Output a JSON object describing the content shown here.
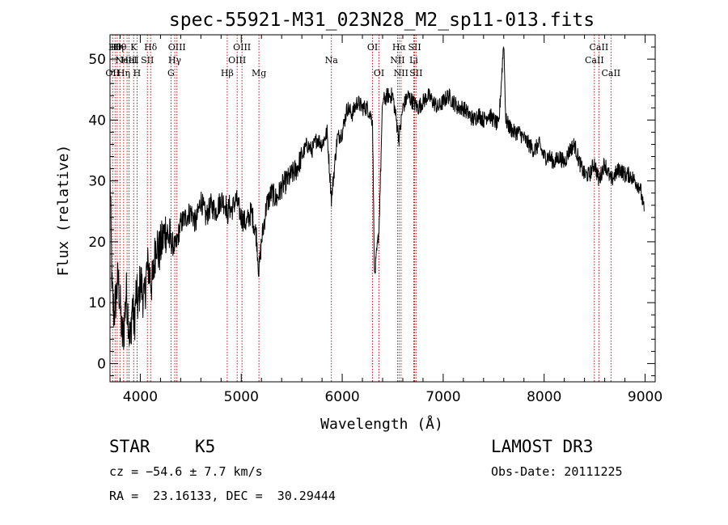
{
  "chart_data": {
    "type": "line",
    "title": "spec-55921-M31_023N28_M2_sp11-013.fits",
    "xlabel": "Wavelength (Å)",
    "ylabel": "Flux (relative)",
    "xlim": [
      3700,
      9100
    ],
    "ylim": [
      -3,
      54
    ],
    "xticks": [
      4000,
      5000,
      6000,
      7000,
      8000,
      9000
    ],
    "yticks": [
      0,
      10,
      20,
      30,
      40,
      50
    ],
    "x_minor_step": 200,
    "y_minor_step": 2,
    "grid": false,
    "series": [
      {
        "name": "flux",
        "color": "#000000",
        "x": [
          3700,
          3720,
          3740,
          3760,
          3780,
          3800,
          3820,
          3840,
          3860,
          3880,
          3900,
          3920,
          3940,
          3960,
          3980,
          4000,
          4020,
          4040,
          4060,
          4080,
          4100,
          4120,
          4140,
          4160,
          4180,
          4200,
          4250,
          4300,
          4350,
          4400,
          4450,
          4500,
          4550,
          4600,
          4650,
          4700,
          4750,
          4800,
          4850,
          4861,
          4880,
          4900,
          4950,
          5000,
          5050,
          5100,
          5150,
          5175,
          5200,
          5250,
          5300,
          5350,
          5400,
          5450,
          5500,
          5550,
          5600,
          5650,
          5700,
          5750,
          5800,
          5850,
          5893,
          5950,
          6000,
          6050,
          6100,
          6150,
          6200,
          6250,
          6300,
          6320,
          6364,
          6400,
          6450,
          6500,
          6563,
          6600,
          6650,
          6700,
          6750,
          6800,
          6850,
          6900,
          6950,
          7000,
          7050,
          7100,
          7150,
          7200,
          7250,
          7300,
          7350,
          7400,
          7450,
          7500,
          7550,
          7600,
          7620,
          7650,
          7700,
          7750,
          7800,
          7850,
          7900,
          7950,
          8000,
          8050,
          8100,
          8150,
          8200,
          8250,
          8300,
          8350,
          8400,
          8450,
          8498,
          8542,
          8600,
          8662,
          8700,
          8750,
          8800,
          8850,
          8900,
          8950,
          8990
        ],
        "y": [
          32,
          12,
          8,
          11,
          14,
          10,
          4,
          6,
          12,
          8,
          3,
          10,
          6,
          12,
          9,
          14,
          12,
          10,
          15,
          16,
          14,
          13,
          17,
          21,
          18,
          19,
          22,
          20,
          19,
          23,
          24,
          25,
          23,
          27,
          24,
          26,
          25,
          27,
          26,
          24,
          26,
          25,
          27,
          24,
          23,
          25,
          21,
          15,
          20,
          26,
          28,
          27,
          29,
          30,
          31,
          32,
          34,
          36,
          35,
          37,
          36,
          38,
          27,
          37,
          38,
          42,
          41,
          43,
          42,
          42,
          40,
          14,
          22,
          43,
          44,
          44,
          37,
          42,
          44,
          43,
          42,
          43,
          44,
          43,
          42,
          43,
          44,
          43,
          42,
          42,
          41,
          40,
          41,
          40,
          41,
          40,
          39,
          53,
          40,
          39,
          38,
          38,
          37,
          36,
          35,
          36,
          34,
          34,
          33,
          34,
          33,
          35,
          36,
          33,
          31,
          31,
          33,
          30,
          33,
          30,
          31,
          32,
          31,
          31,
          30,
          29,
          25
        ]
      }
    ],
    "line_groups": [
      {
        "color": "#b00000",
        "lines": [
          {
            "x": 3726,
            "label": "OII",
            "row": 3
          },
          {
            "x": 3750,
            "label": "Hθ",
            "row": 1
          },
          {
            "x": 3771,
            "label": "Hη",
            "row": 1
          },
          {
            "x": 3798,
            "label": "Hθ",
            "row": 1
          },
          {
            "x": 3835,
            "label": "Hη",
            "row": 3
          },
          {
            "x": 3869,
            "label": "NeIII",
            "row": 2
          },
          {
            "x": 3889,
            "label": "HeI",
            "row": 2
          },
          {
            "x": 3934,
            "label": "K",
            "row": 1
          },
          {
            "x": 3968,
            "label": "H",
            "row": 3
          },
          {
            "x": 4070,
            "label": "SII",
            "row": 2
          },
          {
            "x": 4102,
            "label": "Hδ",
            "row": 1
          },
          {
            "x": 4304,
            "label": "G",
            "row": 3
          },
          {
            "x": 4341,
            "label": "Hγ",
            "row": 2
          },
          {
            "x": 4363,
            "label": "OIII",
            "row": 1
          },
          {
            "x": 4861,
            "label": "Hβ",
            "row": 3
          },
          {
            "x": 4959,
            "label": "OIII",
            "row": 2
          },
          {
            "x": 5007,
            "label": "OIII",
            "row": 1
          },
          {
            "x": 5175,
            "label": "Mg",
            "row": 3
          },
          {
            "x": 5893,
            "label": "Na",
            "row": 2
          },
          {
            "x": 6300,
            "label": "OI",
            "row": 1
          },
          {
            "x": 6364,
            "label": "OI",
            "row": 3
          },
          {
            "x": 6548,
            "label": "NII",
            "row": 2
          },
          {
            "x": 6563,
            "label": "Hα",
            "row": 1
          },
          {
            "x": 6583,
            "label": "NII",
            "row": 3
          },
          {
            "x": 6708,
            "label": "Li",
            "row": 2
          },
          {
            "x": 6717,
            "label": "SII",
            "row": 1
          },
          {
            "x": 6731,
            "label": "SII",
            "row": 3
          },
          {
            "x": 8498,
            "label": "CaII",
            "row": 2
          },
          {
            "x": 8542,
            "label": "CaII",
            "row": 1
          },
          {
            "x": 8662,
            "label": "CaII",
            "row": 3
          }
        ]
      }
    ]
  },
  "info": {
    "object_class": "STAR",
    "subclass": "K5",
    "survey": "LAMOST DR3",
    "cz": "cz = −54.6 ± 7.7 km/s",
    "obs_date": "Obs-Date: 20111225",
    "coords": "RA =  23.16133, DEC =  30.29444"
  }
}
